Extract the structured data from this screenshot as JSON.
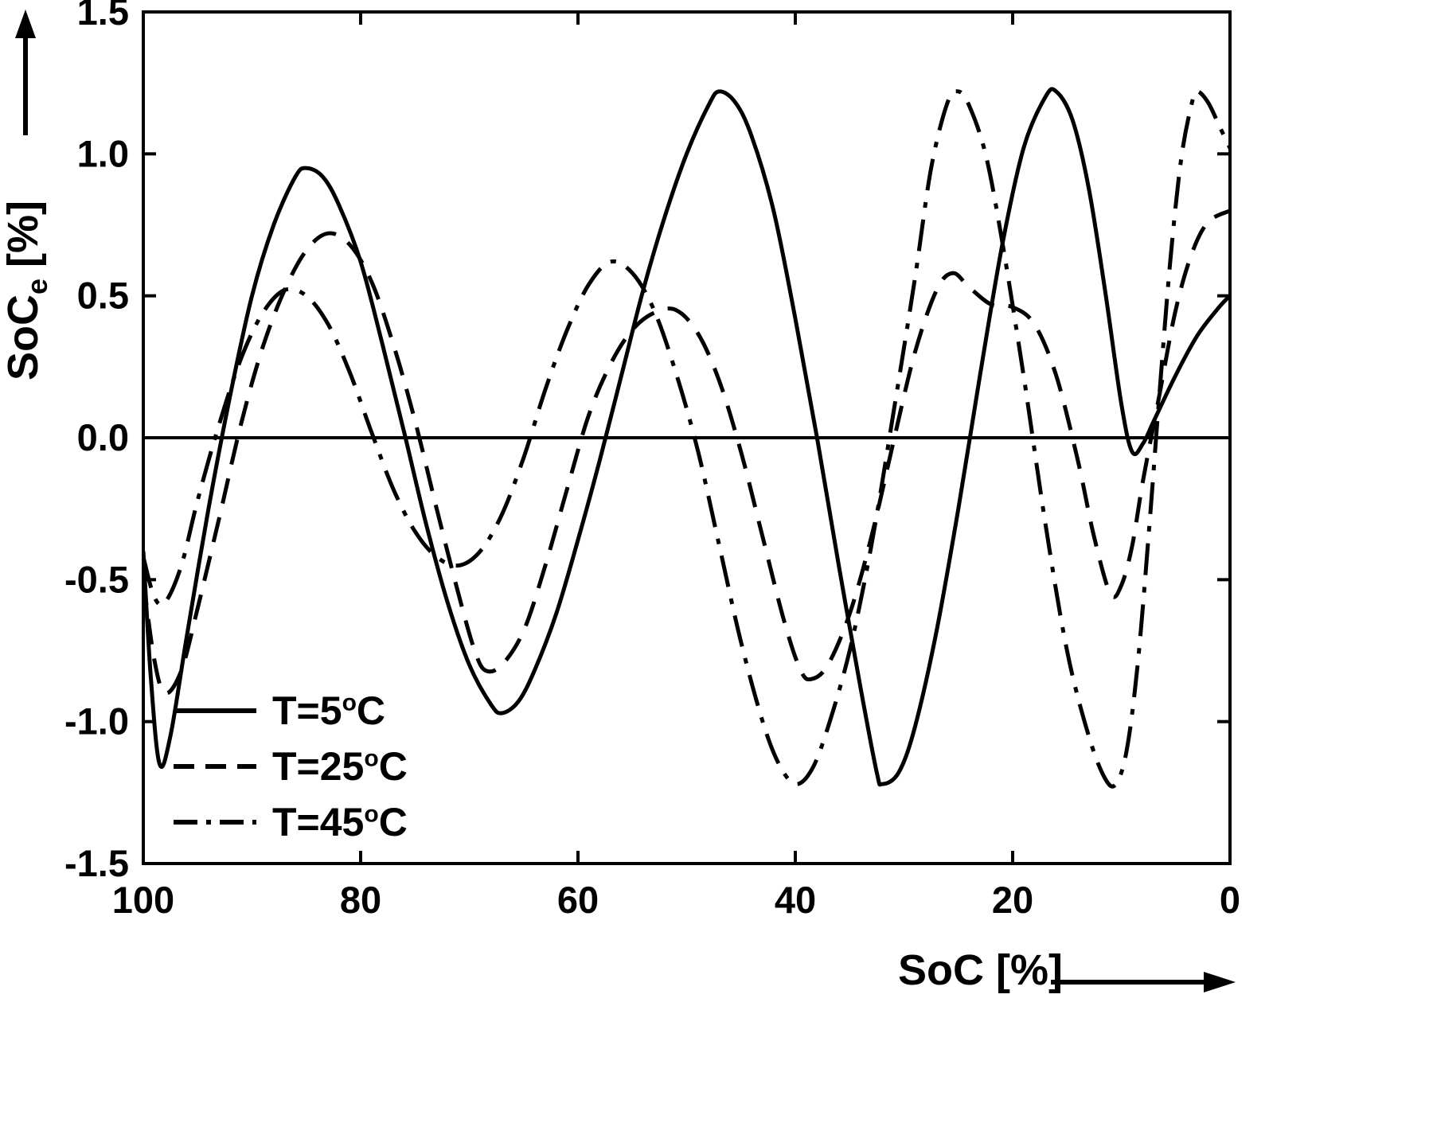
{
  "chart_data": {
    "type": "line",
    "title": "",
    "xlabel": "SoC [%]",
    "ylabel": {
      "base": "SoC",
      "sub": "e",
      "unit": "[%]"
    },
    "xlim": [
      100,
      0
    ],
    "ylim": [
      -1.5,
      1.5
    ],
    "x_axis_reversed": true,
    "x_ticks": [
      100,
      80,
      60,
      40,
      20,
      0
    ],
    "y_ticks": [
      -1.5,
      -1.0,
      -0.5,
      0.0,
      0.5,
      1.0,
      1.5
    ],
    "grid": false,
    "zero_line": true,
    "legend_position": "lower-left",
    "line_color": "#000000",
    "series": [
      {
        "name": "T=5°C",
        "style": "solid",
        "points": [
          [
            100,
            -0.4
          ],
          [
            99.3,
            -0.85
          ],
          [
            98.5,
            -1.15
          ],
          [
            97.5,
            -1.05
          ],
          [
            96,
            -0.7
          ],
          [
            94,
            -0.25
          ],
          [
            92,
            0.15
          ],
          [
            90,
            0.5
          ],
          [
            88,
            0.75
          ],
          [
            86,
            0.92
          ],
          [
            85,
            0.95
          ],
          [
            83.5,
            0.92
          ],
          [
            82,
            0.82
          ],
          [
            80,
            0.62
          ],
          [
            78,
            0.33
          ],
          [
            76,
            0.02
          ],
          [
            74,
            -0.3
          ],
          [
            72,
            -0.58
          ],
          [
            70,
            -0.8
          ],
          [
            68,
            -0.94
          ],
          [
            67,
            -0.97
          ],
          [
            65.5,
            -0.93
          ],
          [
            64,
            -0.82
          ],
          [
            62,
            -0.62
          ],
          [
            60,
            -0.36
          ],
          [
            58,
            -0.08
          ],
          [
            56,
            0.22
          ],
          [
            54,
            0.52
          ],
          [
            52,
            0.78
          ],
          [
            50,
            1.0
          ],
          [
            48,
            1.17
          ],
          [
            47,
            1.22
          ],
          [
            45.5,
            1.18
          ],
          [
            44,
            1.06
          ],
          [
            42,
            0.8
          ],
          [
            40,
            0.42
          ],
          [
            38,
            0.0
          ],
          [
            36,
            -0.45
          ],
          [
            34,
            -0.88
          ],
          [
            32.5,
            -1.18
          ],
          [
            32,
            -1.22
          ],
          [
            30.5,
            -1.18
          ],
          [
            29,
            -1.02
          ],
          [
            27,
            -0.68
          ],
          [
            25,
            -0.25
          ],
          [
            23,
            0.22
          ],
          [
            21,
            0.67
          ],
          [
            19,
            1.02
          ],
          [
            17,
            1.2
          ],
          [
            16,
            1.22
          ],
          [
            14.5,
            1.12
          ],
          [
            13,
            0.88
          ],
          [
            11.5,
            0.52
          ],
          [
            10,
            0.12
          ],
          [
            9,
            -0.05
          ],
          [
            8,
            -0.02
          ],
          [
            7,
            0.06
          ],
          [
            5,
            0.22
          ],
          [
            3,
            0.36
          ],
          [
            1,
            0.46
          ],
          [
            0,
            0.5
          ]
        ]
      },
      {
        "name": "T=25°C",
        "style": "dashed",
        "points": [
          [
            100,
            -0.5
          ],
          [
            99,
            -0.78
          ],
          [
            98,
            -0.9
          ],
          [
            96.5,
            -0.82
          ],
          [
            95,
            -0.6
          ],
          [
            93,
            -0.28
          ],
          [
            91,
            0.05
          ],
          [
            89,
            0.32
          ],
          [
            87,
            0.52
          ],
          [
            85,
            0.66
          ],
          [
            83,
            0.72
          ],
          [
            81,
            0.68
          ],
          [
            79,
            0.55
          ],
          [
            77,
            0.33
          ],
          [
            75,
            0.06
          ],
          [
            73,
            -0.25
          ],
          [
            71,
            -0.55
          ],
          [
            69.5,
            -0.75
          ],
          [
            68.5,
            -0.82
          ],
          [
            67,
            -0.8
          ],
          [
            65,
            -0.68
          ],
          [
            63,
            -0.45
          ],
          [
            61,
            -0.18
          ],
          [
            59,
            0.08
          ],
          [
            57,
            0.26
          ],
          [
            55,
            0.38
          ],
          [
            53,
            0.44
          ],
          [
            51,
            0.45
          ],
          [
            49,
            0.37
          ],
          [
            47,
            0.2
          ],
          [
            45,
            -0.05
          ],
          [
            43,
            -0.35
          ],
          [
            41,
            -0.65
          ],
          [
            39.5,
            -0.82
          ],
          [
            38.5,
            -0.85
          ],
          [
            37,
            -0.8
          ],
          [
            35,
            -0.62
          ],
          [
            33,
            -0.35
          ],
          [
            31,
            -0.02
          ],
          [
            29,
            0.3
          ],
          [
            27,
            0.52
          ],
          [
            25.5,
            0.58
          ],
          [
            24,
            0.53
          ],
          [
            22,
            0.47
          ],
          [
            20,
            0.46
          ],
          [
            18,
            0.4
          ],
          [
            16,
            0.22
          ],
          [
            14,
            -0.08
          ],
          [
            12.5,
            -0.35
          ],
          [
            11,
            -0.55
          ],
          [
            10,
            -0.52
          ],
          [
            9,
            -0.38
          ],
          [
            8,
            -0.15
          ],
          [
            6.5,
            0.15
          ],
          [
            5,
            0.45
          ],
          [
            3.5,
            0.65
          ],
          [
            2,
            0.76
          ],
          [
            0,
            0.8
          ]
        ]
      },
      {
        "name": "T=45°C",
        "style": "dashdot",
        "points": [
          [
            100,
            -0.42
          ],
          [
            99,
            -0.56
          ],
          [
            98,
            -0.58
          ],
          [
            96.5,
            -0.45
          ],
          [
            95,
            -0.22
          ],
          [
            93,
            0.05
          ],
          [
            91,
            0.28
          ],
          [
            89,
            0.44
          ],
          [
            87,
            0.52
          ],
          [
            85,
            0.5
          ],
          [
            83,
            0.4
          ],
          [
            81,
            0.23
          ],
          [
            79,
            0.02
          ],
          [
            77,
            -0.18
          ],
          [
            75,
            -0.33
          ],
          [
            73,
            -0.42
          ],
          [
            71,
            -0.45
          ],
          [
            69,
            -0.4
          ],
          [
            67,
            -0.27
          ],
          [
            65,
            -0.07
          ],
          [
            63,
            0.17
          ],
          [
            61,
            0.38
          ],
          [
            59,
            0.54
          ],
          [
            57,
            0.62
          ],
          [
            55,
            0.58
          ],
          [
            53,
            0.45
          ],
          [
            51,
            0.23
          ],
          [
            49,
            -0.04
          ],
          [
            47,
            -0.38
          ],
          [
            45,
            -0.72
          ],
          [
            43,
            -1.0
          ],
          [
            41.5,
            -1.15
          ],
          [
            40,
            -1.22
          ],
          [
            38.5,
            -1.17
          ],
          [
            37,
            -1.02
          ],
          [
            35,
            -0.75
          ],
          [
            33,
            -0.38
          ],
          [
            31,
            0.08
          ],
          [
            29,
            0.56
          ],
          [
            27.5,
            0.95
          ],
          [
            26,
            1.18
          ],
          [
            25,
            1.22
          ],
          [
            24,
            1.17
          ],
          [
            22.5,
            1.0
          ],
          [
            21,
            0.7
          ],
          [
            19,
            0.22
          ],
          [
            17,
            -0.3
          ],
          [
            15,
            -0.75
          ],
          [
            13,
            -1.05
          ],
          [
            11.5,
            -1.2
          ],
          [
            10.5,
            -1.22
          ],
          [
            9.5,
            -1.1
          ],
          [
            8.5,
            -0.8
          ],
          [
            7.5,
            -0.35
          ],
          [
            6.5,
            0.15
          ],
          [
            5.5,
            0.62
          ],
          [
            4.5,
            0.98
          ],
          [
            3.5,
            1.18
          ],
          [
            3,
            1.22
          ],
          [
            2,
            1.18
          ],
          [
            1,
            1.1
          ],
          [
            0,
            1.02
          ]
        ]
      }
    ]
  },
  "legend": {
    "items": [
      {
        "pre": "T=5",
        "sup": "o",
        "post": "C",
        "style": "solid"
      },
      {
        "pre": "T=25",
        "sup": "o",
        "post": "C",
        "style": "dashed"
      },
      {
        "pre": "T=45",
        "sup": "o",
        "post": "C",
        "style": "dashdot"
      }
    ]
  },
  "colors": {
    "foreground": "#000000",
    "background": "#ffffff"
  }
}
